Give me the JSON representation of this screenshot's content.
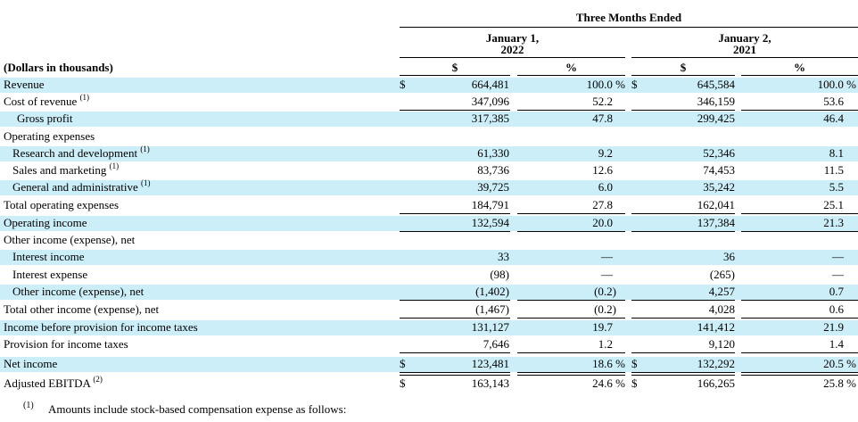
{
  "header": {
    "period_title": "Three Months Ended",
    "col1_line1": "January 1,",
    "col1_line2": "2022",
    "col2_line1": "January 2,",
    "col2_line2": "2021",
    "units_label": "(Dollars in thousands)",
    "dollar_head": "$",
    "pct_head": "%"
  },
  "rows": [
    {
      "label": "Revenue",
      "indent": 0,
      "sup": "",
      "a": "664,481",
      "ap": "100.0 %",
      "b": "645,584",
      "bp": "100.0 %",
      "dollar": true
    },
    {
      "label": "Cost of revenue",
      "indent": 0,
      "sup": "(1)",
      "a": "347,096",
      "ap": "52.2",
      "b": "346,159",
      "bp": "53.6"
    },
    {
      "label": "Gross profit",
      "indent": 2,
      "sup": "",
      "a": "317,385",
      "ap": "47.8",
      "b": "299,425",
      "bp": "46.4"
    },
    {
      "label": "Operating expenses",
      "indent": 0,
      "sup": "",
      "a": "",
      "ap": "",
      "b": "",
      "bp": ""
    },
    {
      "label": "Research and development",
      "indent": 1,
      "sup": "(1)",
      "a": "61,330",
      "ap": "9.2",
      "b": "52,346",
      "bp": "8.1"
    },
    {
      "label": "Sales and marketing",
      "indent": 1,
      "sup": "(1)",
      "a": "83,736",
      "ap": "12.6",
      "b": "74,453",
      "bp": "11.5"
    },
    {
      "label": "General and administrative",
      "indent": 1,
      "sup": "(1)",
      "a": "39,725",
      "ap": "6.0",
      "b": "35,242",
      "bp": "5.5"
    },
    {
      "label": "Total operating expenses",
      "indent": 0,
      "sup": "",
      "a": "184,791",
      "ap": "27.8",
      "b": "162,041",
      "bp": "25.1"
    },
    {
      "label": "Operating income",
      "indent": 0,
      "sup": "",
      "a": "132,594",
      "ap": "20.0",
      "b": "137,384",
      "bp": "21.3"
    },
    {
      "label": "Other income (expense), net",
      "indent": 0,
      "sup": "",
      "a": "",
      "ap": "",
      "b": "",
      "bp": ""
    },
    {
      "label": "Interest income",
      "indent": 1,
      "sup": "",
      "a": "33",
      "ap": "—",
      "b": "36",
      "bp": "—"
    },
    {
      "label": "Interest expense",
      "indent": 1,
      "sup": "",
      "a": "(98)",
      "ap": "—",
      "b": "(265)",
      "bp": "—"
    },
    {
      "label": "Other income (expense), net",
      "indent": 1,
      "sup": "",
      "a": "(1,402)",
      "ap": "(0.2)",
      "b": "4,257",
      "bp": "0.7"
    },
    {
      "label": "Total other income (expense), net",
      "indent": 0,
      "sup": "",
      "a": "(1,467)",
      "ap": "(0.2)",
      "b": "4,028",
      "bp": "0.6"
    },
    {
      "label": "Income before provision for income taxes",
      "indent": 0,
      "sup": "",
      "a": "131,127",
      "ap": "19.7",
      "b": "141,412",
      "bp": "21.9"
    },
    {
      "label": "Provision for income taxes",
      "indent": 0,
      "sup": "",
      "a": "7,646",
      "ap": "1.2",
      "b": "9,120",
      "bp": "1.4"
    },
    {
      "label": "Net income",
      "indent": 0,
      "sup": "",
      "a": "123,481",
      "ap": "18.6 %",
      "b": "132,292",
      "bp": "20.5 %",
      "dollar": true
    },
    {
      "label": "Adjusted EBITDA",
      "indent": 0,
      "sup": "(2)",
      "a": "163,143",
      "ap": "24.6 %",
      "b": "166,265",
      "bp": "25.8 %",
      "dollar": true
    }
  ],
  "footnote": {
    "marker": "(1)",
    "text": "Amounts include stock-based compensation expense as follows:"
  },
  "colors": {
    "band": "#cceef8"
  }
}
